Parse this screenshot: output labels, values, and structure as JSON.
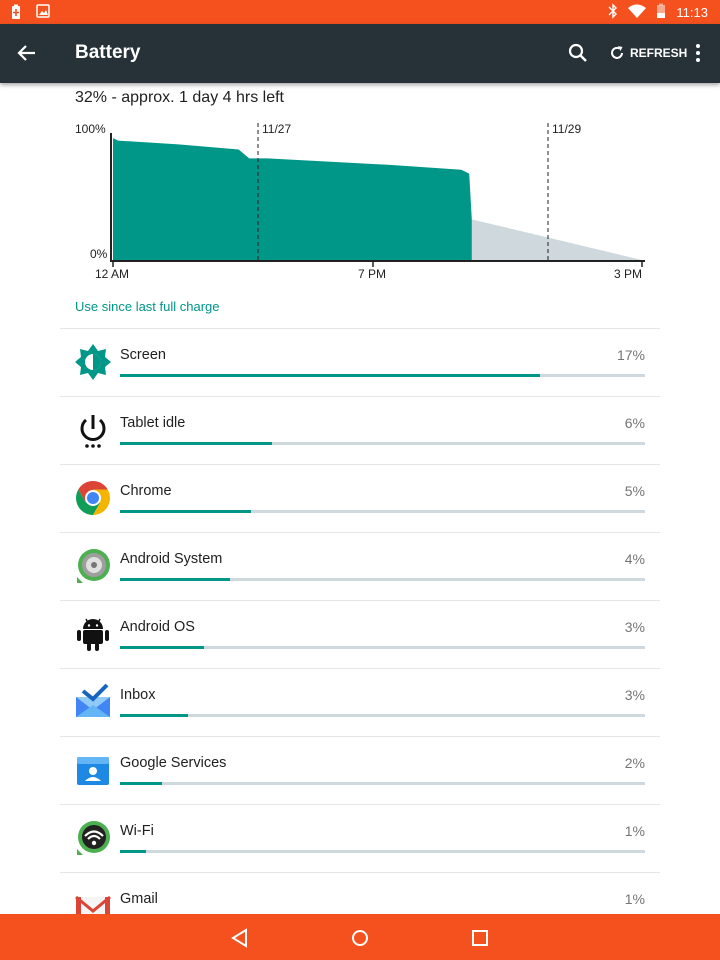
{
  "status_bar": {
    "time": "11:13",
    "left_icons": [
      "battery-saver-icon",
      "image-notification-icon"
    ],
    "right_icons": [
      "bluetooth-icon",
      "wifi-icon",
      "battery-icon"
    ],
    "color": "#f4511e"
  },
  "app_bar": {
    "title": "Battery",
    "refresh_label": "REFRESH",
    "icons": [
      "back-arrow-icon",
      "search-icon",
      "refresh-icon",
      "overflow-menu-icon"
    ],
    "color": "#263238"
  },
  "summary": "32% - approx. 1 day 4 hrs left",
  "chart_data": {
    "type": "area",
    "title": "",
    "y_tick_labels": [
      "100%",
      "0%"
    ],
    "x_tick_labels": [
      "12 AM",
      "7 PM",
      "3 PM"
    ],
    "date_markers": [
      "11/27",
      "11/29"
    ],
    "x_hours": [
      0,
      0.2,
      2.5,
      4.8,
      5.2,
      5.9,
      10.5,
      13.3,
      13.6,
      13.7
    ],
    "battery_percent": [
      96,
      94,
      91,
      87,
      80,
      80,
      75,
      71,
      68,
      32
    ],
    "projection": {
      "from_hours": 13.7,
      "from_percent": 32,
      "to_hours": 20.2,
      "to_percent": 0
    },
    "ylim": [
      0,
      100
    ],
    "colors": {
      "history": "#009688",
      "projection": "#cfd8dc"
    }
  },
  "use_since_link": "Use since last full charge",
  "usage": {
    "items": [
      {
        "name": "Screen",
        "percent_label": "17%",
        "fraction": 0.8,
        "icon": "brightness-icon"
      },
      {
        "name": "Tablet idle",
        "percent_label": "6%",
        "fraction": 0.29,
        "icon": "power-idle-icon"
      },
      {
        "name": "Chrome",
        "percent_label": "5%",
        "fraction": 0.25,
        "icon": "chrome-icon"
      },
      {
        "name": "Android System",
        "percent_label": "4%",
        "fraction": 0.21,
        "icon": "android-system-icon"
      },
      {
        "name": "Android OS",
        "percent_label": "3%",
        "fraction": 0.16,
        "icon": "android-os-icon"
      },
      {
        "name": "Inbox",
        "percent_label": "3%",
        "fraction": 0.13,
        "icon": "inbox-icon"
      },
      {
        "name": "Google Services",
        "percent_label": "2%",
        "fraction": 0.08,
        "icon": "google-services-icon"
      },
      {
        "name": "Wi-Fi",
        "percent_label": "1%",
        "fraction": 0.05,
        "icon": "wifi-app-icon"
      },
      {
        "name": "Gmail",
        "percent_label": "1%",
        "fraction": 0.05,
        "icon": "gmail-icon"
      }
    ]
  },
  "nav_bar": {
    "icons": [
      "nav-back-icon",
      "nav-home-icon",
      "nav-recents-icon"
    ],
    "color": "#f4511e"
  }
}
